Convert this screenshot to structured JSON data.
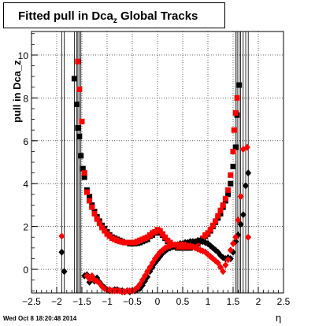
{
  "header": {
    "title_main": "Fitted pull in Dca",
    "title_sub": "z",
    "title_rest": "  Global Tracks"
  },
  "footer": {
    "timestamp": "Wed Oct  8 18:20:48 2014"
  },
  "chart_data": {
    "type": "scatter",
    "title": "Fitted pull in Dca_z  Global Tracks",
    "xlabel": "η",
    "ylabel": "pull in Dca_z",
    "xlim": [
      -2.5,
      2.5
    ],
    "ylim": [
      -1.1,
      11.1
    ],
    "xticks": [
      -2.5,
      -2,
      -1.5,
      -1,
      -0.5,
      0,
      0.5,
      1,
      1.5,
      2,
      2.5
    ],
    "xtick_labels": [
      "−2.5",
      "−2",
      "−1.5",
      "−1",
      "−0.5",
      "0",
      "0.5",
      "1",
      "1.5",
      "2",
      "2.5"
    ],
    "yticks": [
      0,
      2,
      4,
      6,
      8,
      10
    ],
    "ytick_labels": [
      "0",
      "2",
      "4",
      "6",
      "8",
      "10"
    ],
    "grid": true,
    "colors": {
      "black": "#000000",
      "red": "#ff0000"
    },
    "series": [
      {
        "color": "black",
        "marker": "square",
        "points": [
          [
            -1.65,
            8.9
          ],
          [
            -1.6,
            7.7
          ],
          [
            -1.58,
            6.6
          ],
          [
            -1.55,
            6.2
          ],
          [
            -1.52,
            5.3
          ],
          [
            -1.48,
            4.7
          ],
          [
            -1.45,
            4.3
          ],
          [
            -1.4,
            3.7
          ],
          [
            -1.35,
            3.4
          ],
          [
            -1.3,
            3.0
          ],
          [
            -1.25,
            2.7
          ],
          [
            -1.2,
            2.45
          ],
          [
            -1.15,
            2.25
          ],
          [
            -1.1,
            2.05
          ],
          [
            -1.05,
            1.9
          ],
          [
            -1.0,
            1.75
          ],
          [
            -0.95,
            1.6
          ],
          [
            -0.9,
            1.5
          ],
          [
            -0.85,
            1.45
          ],
          [
            -0.8,
            1.4
          ],
          [
            -0.75,
            1.35
          ],
          [
            -0.7,
            1.3
          ],
          [
            -0.65,
            1.25
          ],
          [
            -0.6,
            1.25
          ],
          [
            -0.55,
            1.2
          ],
          [
            -0.5,
            1.2
          ],
          [
            -0.45,
            1.2
          ],
          [
            -0.4,
            1.22
          ],
          [
            -0.35,
            1.25
          ],
          [
            -0.3,
            1.3
          ],
          [
            -0.25,
            1.35
          ],
          [
            -0.2,
            1.4
          ],
          [
            -0.15,
            1.55
          ],
          [
            -0.1,
            1.6
          ],
          [
            -0.05,
            1.7
          ],
          [
            0.0,
            1.75
          ],
          [
            0.05,
            1.7
          ],
          [
            0.1,
            1.6
          ],
          [
            0.15,
            1.45
          ],
          [
            0.2,
            1.3
          ],
          [
            0.25,
            1.2
          ],
          [
            0.3,
            1.1
          ],
          [
            0.35,
            1.05
          ],
          [
            0.4,
            1.0
          ],
          [
            0.45,
            1.0
          ],
          [
            0.5,
            1.0
          ],
          [
            0.55,
            1.0
          ],
          [
            0.6,
            1.0
          ],
          [
            0.65,
            1.0
          ],
          [
            0.7,
            1.05
          ],
          [
            0.75,
            1.1
          ],
          [
            0.8,
            1.2
          ],
          [
            0.85,
            1.3
          ],
          [
            0.9,
            1.4
          ],
          [
            0.95,
            1.55
          ],
          [
            1.0,
            1.65
          ],
          [
            1.05,
            1.8
          ],
          [
            1.1,
            2.0
          ],
          [
            1.15,
            2.2
          ],
          [
            1.2,
            2.4
          ],
          [
            1.25,
            2.6
          ],
          [
            1.3,
            2.9
          ],
          [
            1.35,
            3.2
          ],
          [
            1.4,
            3.5
          ],
          [
            1.45,
            4.0
          ],
          [
            1.5,
            4.8
          ],
          [
            1.55,
            5.7
          ],
          [
            1.58,
            7.2
          ],
          [
            1.62,
            8.6
          ]
        ]
      },
      {
        "color": "red",
        "marker": "square",
        "points": [
          [
            -1.58,
            9.7
          ],
          [
            -1.55,
            8.4
          ],
          [
            -1.5,
            6.9
          ],
          [
            -1.45,
            4.5
          ],
          [
            -1.4,
            3.6
          ],
          [
            -1.35,
            3.2
          ],
          [
            -1.3,
            2.9
          ],
          [
            -1.25,
            2.6
          ],
          [
            -1.2,
            2.35
          ],
          [
            -1.15,
            2.15
          ],
          [
            -1.1,
            1.95
          ],
          [
            -1.05,
            1.8
          ],
          [
            -1.0,
            1.65
          ],
          [
            -0.95,
            1.55
          ],
          [
            -0.9,
            1.45
          ],
          [
            -0.85,
            1.4
          ],
          [
            -0.8,
            1.35
          ],
          [
            -0.75,
            1.3
          ],
          [
            -0.7,
            1.28
          ],
          [
            -0.65,
            1.25
          ],
          [
            -0.6,
            1.25
          ],
          [
            -0.55,
            1.25
          ],
          [
            -0.5,
            1.25
          ],
          [
            -0.45,
            1.25
          ],
          [
            -0.4,
            1.3
          ],
          [
            -0.35,
            1.35
          ],
          [
            -0.3,
            1.4
          ],
          [
            -0.25,
            1.45
          ],
          [
            -0.2,
            1.5
          ],
          [
            -0.15,
            1.6
          ],
          [
            -0.1,
            1.7
          ],
          [
            -0.05,
            1.75
          ],
          [
            0.0,
            1.85
          ],
          [
            0.05,
            1.8
          ],
          [
            0.1,
            1.65
          ],
          [
            0.15,
            1.5
          ],
          [
            0.2,
            1.35
          ],
          [
            0.25,
            1.25
          ],
          [
            0.3,
            1.15
          ],
          [
            0.35,
            1.1
          ],
          [
            0.4,
            1.05
          ],
          [
            0.45,
            1.05
          ],
          [
            0.5,
            1.05
          ],
          [
            0.55,
            1.05
          ],
          [
            0.6,
            1.05
          ],
          [
            0.65,
            1.05
          ],
          [
            0.7,
            1.1
          ],
          [
            0.75,
            1.15
          ],
          [
            0.8,
            1.25
          ],
          [
            0.85,
            1.35
          ],
          [
            0.9,
            1.45
          ],
          [
            0.95,
            1.6
          ],
          [
            1.0,
            1.7
          ],
          [
            1.05,
            1.85
          ],
          [
            1.1,
            2.05
          ],
          [
            1.15,
            2.25
          ],
          [
            1.2,
            2.5
          ],
          [
            1.25,
            2.75
          ],
          [
            1.3,
            3.0
          ],
          [
            1.35,
            3.3
          ],
          [
            1.4,
            3.7
          ],
          [
            1.45,
            4.4
          ],
          [
            1.5,
            5.5
          ],
          [
            1.52,
            6.5
          ],
          [
            1.55,
            7.3
          ],
          [
            1.58,
            8.0
          ]
        ]
      },
      {
        "color": "black",
        "marker": "diamond",
        "points": [
          [
            -1.9,
            0.8
          ],
          [
            -1.85,
            -0.1
          ],
          [
            -1.45,
            -0.3
          ],
          [
            -1.4,
            -0.25
          ],
          [
            -1.35,
            -0.6
          ],
          [
            -1.3,
            -0.35
          ],
          [
            -1.25,
            -0.55
          ],
          [
            -1.2,
            -0.4
          ],
          [
            -1.15,
            -0.6
          ],
          [
            -1.1,
            -0.75
          ],
          [
            -1.05,
            -0.85
          ],
          [
            -1.0,
            -0.95
          ],
          [
            -0.95,
            -1.0
          ],
          [
            -0.9,
            -1.0
          ],
          [
            -0.85,
            -0.95
          ],
          [
            -0.8,
            -0.95
          ],
          [
            -0.75,
            -1.0
          ],
          [
            -0.7,
            -1.0
          ],
          [
            -0.65,
            -1.05
          ],
          [
            -0.6,
            -1.0
          ],
          [
            -0.55,
            -1.05
          ],
          [
            -0.5,
            -1.0
          ],
          [
            -0.45,
            -1.0
          ],
          [
            -0.4,
            -0.95
          ],
          [
            -0.35,
            -0.9
          ],
          [
            -0.3,
            -0.75
          ],
          [
            -0.25,
            -0.55
          ],
          [
            -0.2,
            -0.35
          ],
          [
            -0.15,
            -0.1
          ],
          [
            -0.1,
            0.1
          ],
          [
            -0.05,
            0.3
          ],
          [
            0.0,
            0.45
          ],
          [
            0.05,
            0.6
          ],
          [
            0.1,
            0.75
          ],
          [
            0.15,
            0.85
          ],
          [
            0.2,
            0.95
          ],
          [
            0.25,
            1.0
          ],
          [
            0.3,
            1.05
          ],
          [
            0.35,
            1.1
          ],
          [
            0.4,
            1.15
          ],
          [
            0.45,
            1.2
          ],
          [
            0.5,
            1.2
          ],
          [
            0.55,
            1.25
          ],
          [
            0.6,
            1.25
          ],
          [
            0.65,
            1.3
          ],
          [
            0.7,
            1.3
          ],
          [
            0.75,
            1.3
          ],
          [
            0.8,
            1.35
          ],
          [
            0.85,
            1.35
          ],
          [
            0.9,
            1.3
          ],
          [
            0.95,
            1.25
          ],
          [
            1.0,
            1.2
          ],
          [
            1.05,
            1.1
          ],
          [
            1.1,
            1.0
          ],
          [
            1.15,
            0.9
          ],
          [
            1.2,
            0.8
          ],
          [
            1.25,
            0.65
          ],
          [
            1.3,
            0.55
          ],
          [
            1.35,
            0.5
          ],
          [
            1.4,
            0.55
          ],
          [
            1.45,
            0.5
          ],
          [
            1.5,
            0.8
          ],
          [
            1.55,
            1.3
          ],
          [
            1.6,
            1.6
          ],
          [
            1.65,
            2.1
          ],
          [
            1.7,
            2.55
          ],
          [
            1.75,
            3.9
          ],
          [
            1.8,
            4.5
          ]
        ]
      },
      {
        "color": "red",
        "marker": "diamond",
        "points": [
          [
            -1.9,
            1.55
          ],
          [
            -1.4,
            -0.3
          ],
          [
            -1.35,
            -0.45
          ],
          [
            -1.3,
            -0.3
          ],
          [
            -1.25,
            -0.5
          ],
          [
            -1.2,
            -0.55
          ],
          [
            -1.15,
            -0.65
          ],
          [
            -1.1,
            -0.8
          ],
          [
            -1.05,
            -0.9
          ],
          [
            -1.0,
            -0.95
          ],
          [
            -0.95,
            -0.95
          ],
          [
            -0.9,
            -1.0
          ],
          [
            -0.85,
            -1.0
          ],
          [
            -0.8,
            -1.0
          ],
          [
            -0.75,
            -1.0
          ],
          [
            -0.7,
            -1.05
          ],
          [
            -0.65,
            -1.05
          ],
          [
            -0.6,
            -1.0
          ],
          [
            -0.55,
            -1.0
          ],
          [
            -0.5,
            -1.0
          ],
          [
            -0.45,
            -0.95
          ],
          [
            -0.4,
            -0.85
          ],
          [
            -0.35,
            -0.7
          ],
          [
            -0.3,
            -0.5
          ],
          [
            -0.25,
            -0.3
          ],
          [
            -0.2,
            -0.1
          ],
          [
            -0.15,
            0.1
          ],
          [
            -0.1,
            0.3
          ],
          [
            -0.05,
            0.5
          ],
          [
            0.0,
            0.65
          ],
          [
            0.05,
            0.8
          ],
          [
            0.1,
            0.9
          ],
          [
            0.15,
            1.0
          ],
          [
            0.2,
            1.05
          ],
          [
            0.25,
            1.1
          ],
          [
            0.3,
            1.15
          ],
          [
            0.35,
            1.15
          ],
          [
            0.4,
            1.15
          ],
          [
            0.45,
            1.15
          ],
          [
            0.5,
            1.15
          ],
          [
            0.55,
            1.15
          ],
          [
            0.6,
            1.1
          ],
          [
            0.65,
            1.1
          ],
          [
            0.7,
            1.05
          ],
          [
            0.75,
            1.0
          ],
          [
            0.8,
            0.95
          ],
          [
            0.85,
            0.9
          ],
          [
            0.9,
            0.85
          ],
          [
            0.95,
            0.8
          ],
          [
            1.0,
            0.7
          ],
          [
            1.05,
            0.6
          ],
          [
            1.1,
            0.5
          ],
          [
            1.15,
            0.4
          ],
          [
            1.2,
            0.3
          ],
          [
            1.25,
            0.1
          ],
          [
            1.3,
            -0.1
          ],
          [
            1.35,
            0.2
          ],
          [
            1.4,
            0.45
          ],
          [
            1.45,
            0.9
          ],
          [
            1.5,
            1.2
          ],
          [
            1.55,
            1.5
          ],
          [
            1.6,
            2.3
          ],
          [
            1.65,
            3.4
          ],
          [
            1.7,
            5.6
          ],
          [
            1.78,
            5.7
          ],
          [
            1.8,
            1.5
          ]
        ]
      }
    ],
    "error_bar_x": [
      -1.9,
      -1.85,
      -1.65,
      -1.6,
      -1.58,
      -1.55,
      -1.52,
      1.55,
      1.58,
      1.62,
      1.65,
      1.7,
      1.75,
      1.8
    ]
  }
}
